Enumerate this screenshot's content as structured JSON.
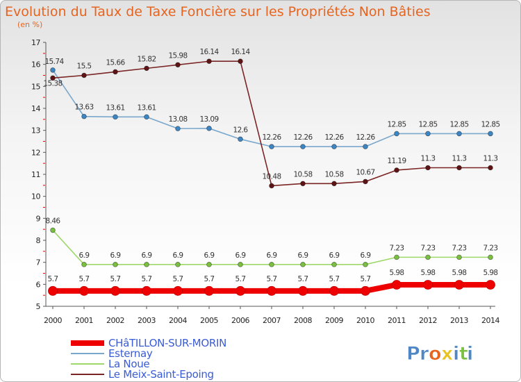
{
  "chart_data": {
    "type": "line",
    "title": "Evolution du Taux de Taxe Foncière sur les Propriétés Non Bâties",
    "subtitle": "(en %)",
    "x": [
      "2000",
      "2001",
      "2002",
      "2003",
      "2004",
      "2005",
      "2006",
      "2007",
      "2008",
      "2009",
      "2010",
      "2011",
      "2012",
      "2013",
      "2014"
    ],
    "ylim": [
      5,
      17
    ],
    "yticks": [
      "5",
      "6",
      "7",
      "8",
      "9",
      "10",
      "11",
      "12",
      "13",
      "14",
      "15",
      "16",
      "17"
    ],
    "series": [
      {
        "name": "CHâTILLON-SUR-MORIN",
        "color": "#ee0000",
        "marker": "#ee0000",
        "values": [
          5.7,
          5.7,
          5.7,
          5.7,
          5.7,
          5.7,
          5.7,
          5.7,
          5.7,
          5.7,
          5.7,
          5.98,
          5.98,
          5.98,
          5.98
        ],
        "labels": [
          "5.7",
          "5.7",
          "5.7",
          "5.7",
          "5.7",
          "5.7",
          "5.7",
          "5.7",
          "5.7",
          "5.7",
          "5.7",
          "5.98",
          "5.98",
          "5.98",
          "5.98"
        ]
      },
      {
        "name": "Esternay",
        "color": "#7aa7cc",
        "marker": "#3c86c4",
        "values": [
          15.74,
          13.63,
          13.61,
          13.61,
          13.08,
          13.09,
          12.6,
          12.26,
          12.26,
          12.26,
          12.26,
          12.85,
          12.85,
          12.85,
          12.85
        ],
        "labels": [
          "15.74",
          "13.63",
          "13.61",
          "13.61",
          "13.08",
          "13.09",
          "12.6",
          "12.26",
          "12.26",
          "12.26",
          "12.26",
          "12.85",
          "12.85",
          "12.85",
          "12.85"
        ]
      },
      {
        "name": "La Noue",
        "color": "#9ed86a",
        "marker": "#7bc040",
        "values": [
          8.46,
          6.9,
          6.9,
          6.9,
          6.9,
          6.9,
          6.9,
          6.9,
          6.9,
          6.9,
          6.9,
          7.23,
          7.23,
          7.23,
          7.23
        ],
        "labels": [
          "8.46",
          "6.9",
          "6.9",
          "6.9",
          "6.9",
          "6.9",
          "6.9",
          "6.9",
          "6.9",
          "6.9",
          "6.9",
          "7.23",
          "7.23",
          "7.23",
          "7.23"
        ]
      },
      {
        "name": "Le Meix-Saint-Epoing",
        "color": "#7a2424",
        "marker": "#5e1414",
        "values": [
          15.38,
          15.5,
          15.66,
          15.82,
          15.98,
          16.14,
          16.14,
          10.48,
          10.58,
          10.58,
          10.67,
          11.19,
          11.3,
          11.3,
          11.3
        ],
        "labels": [
          "15.38",
          "15.5",
          "15.66",
          "15.82",
          "15.98",
          "16.14",
          "16.14",
          "10.48",
          "10.58",
          "10.58",
          "10.67",
          "11.19",
          "11.3",
          "11.3",
          "11.3"
        ]
      }
    ],
    "legend_position": "bottom-left",
    "legend_text_color": "#3a5bd6"
  },
  "branding": {
    "logo_text": "Proxiti",
    "logo_letters": [
      "P",
      "r",
      "o",
      "x",
      "i",
      "t",
      "i"
    ],
    "logo_colors": [
      "#4f86c6",
      "#4f86c6",
      "#e8641e",
      "#e8c21e",
      "#4f86c6",
      "#7bc040",
      "#4f86c6"
    ]
  }
}
